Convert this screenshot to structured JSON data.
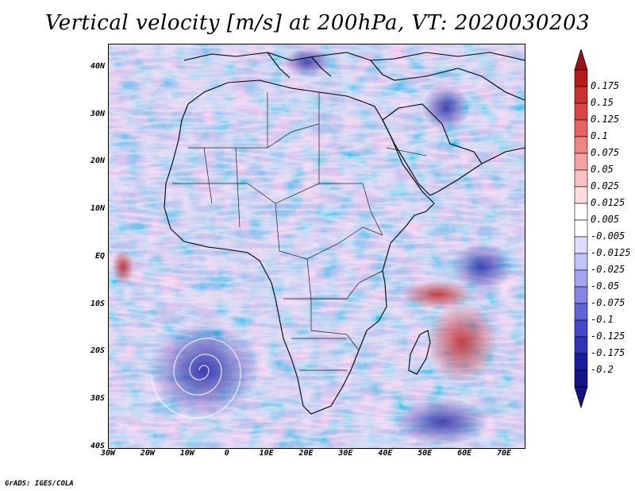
{
  "title": "Vertical velocity [m/s] at 200hPa, VT: 2020030203",
  "credit": "GrADS: IGES/COLA",
  "map": {
    "lat_labels": [
      "40N",
      "30N",
      "20N",
      "10N",
      "EQ",
      "10S",
      "20S",
      "30S",
      "40S"
    ],
    "lon_labels": [
      "30W",
      "20W",
      "10W",
      "0",
      "10E",
      "20E",
      "30E",
      "40E",
      "50E",
      "60E",
      "70E"
    ],
    "lat_range": [
      -40,
      45
    ],
    "lon_range": [
      -30,
      75
    ],
    "basemap": "Africa, Middle East and surrounding oceans with country borders",
    "field": "vertical velocity at 200hPa (red = positive, blue = negative)"
  },
  "colorbar": {
    "labels": [
      "0.175",
      "0.15",
      "0.125",
      "0.1",
      "0.075",
      "0.05",
      "0.025",
      "0.0125",
      "0.005",
      "-0.005",
      "-0.0125",
      "-0.025",
      "-0.05",
      "-0.075",
      "-0.1",
      "-0.125",
      "-0.175",
      "-0.2"
    ],
    "colors": [
      "#b51b1b",
      "#c83232",
      "#d84646",
      "#e56363",
      "#ef8484",
      "#f5a3a3",
      "#f9c2c2",
      "#fcdcdc",
      "#ffffff",
      "#ffffff",
      "#dcdcfc",
      "#c2c2f5",
      "#a3a3ef",
      "#8484e5",
      "#6363d8",
      "#4646c8",
      "#3232b5",
      "#1b1b9f",
      "#14148a"
    ],
    "top_arrow_color": "#a01010",
    "bottom_arrow_color": "#14148a"
  }
}
